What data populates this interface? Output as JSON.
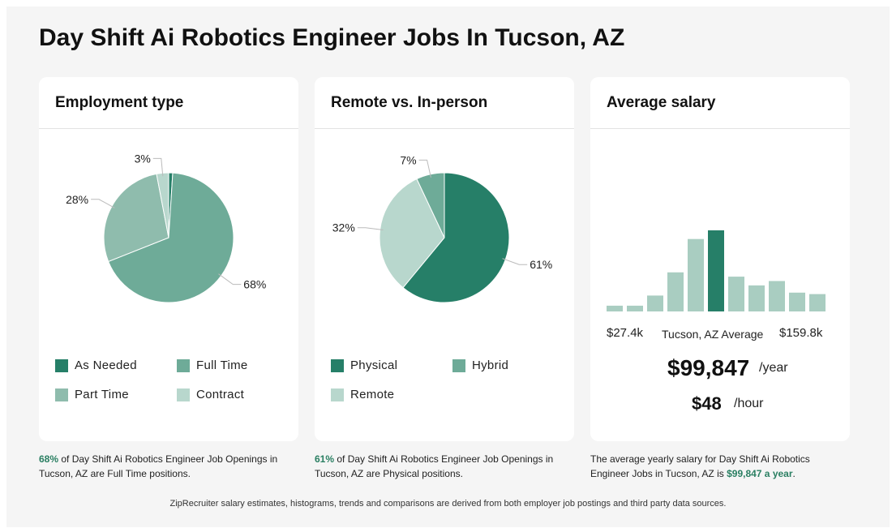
{
  "page": {
    "title": "Day Shift Ai Robotics Engineer Jobs In Tucson, AZ",
    "footer": "ZipRecruiter salary estimates, histograms, trends and comparisons are derived from both employer job postings and third party data sources."
  },
  "employment": {
    "title": "Employment type",
    "legend": [
      "As Needed",
      "Full Time",
      "Part Time",
      "Contract"
    ],
    "caption": {
      "highlight": "68%",
      "text": " of Day Shift Ai Robotics Engineer Job Openings in Tucson, AZ are Full Time positions."
    }
  },
  "remote": {
    "title": "Remote vs. In-person",
    "legend": [
      "Physical",
      "Hybrid",
      "Remote"
    ],
    "caption": {
      "highlight": "61%",
      "text": " of Day Shift Ai Robotics Engineer Job Openings in Tucson, AZ are Physical positions."
    }
  },
  "salary": {
    "title": "Average salary",
    "min_label": "$27.4k",
    "avg_label": "Tucson, AZ Average",
    "max_label": "$159.8k",
    "yearly": "$99,847",
    "yearly_unit": "/year",
    "hourly": "$48",
    "hourly_unit": "/hour",
    "caption": {
      "text": "The average yearly salary for Day Shift Ai Robotics Engineer Jobs in Tucson, AZ is ",
      "highlight": "$99,847 a year",
      "end": "."
    }
  },
  "colors": {
    "dark": "#267f68",
    "mid": "#6eab98",
    "midlight": "#8fbcad",
    "light": "#b8d7cd",
    "accent": "#2a7f62"
  },
  "chart_data": [
    {
      "type": "pie",
      "title": "Employment type",
      "categories": [
        "As Needed",
        "Full Time",
        "Part Time",
        "Contract"
      ],
      "values": [
        1,
        68,
        28,
        3
      ],
      "labels": [
        "",
        "68%",
        "28%",
        "3%"
      ],
      "colors": [
        "#267f68",
        "#6eab98",
        "#8fbcad",
        "#b8d7cd"
      ]
    },
    {
      "type": "pie",
      "title": "Remote vs. In-person",
      "categories": [
        "Physical",
        "Remote",
        "Hybrid"
      ],
      "values": [
        61,
        32,
        7
      ],
      "labels": [
        "61%",
        "32%",
        "7%"
      ],
      "colors": [
        "#267f68",
        "#b8d7cd",
        "#6eab98"
      ]
    },
    {
      "type": "bar",
      "title": "Average salary",
      "values": [
        4,
        4,
        11,
        27,
        50,
        56,
        24,
        18,
        21,
        13,
        12
      ],
      "highlight_index": 5,
      "colors": [
        "#a9cdc1",
        "#267f68"
      ]
    }
  ]
}
